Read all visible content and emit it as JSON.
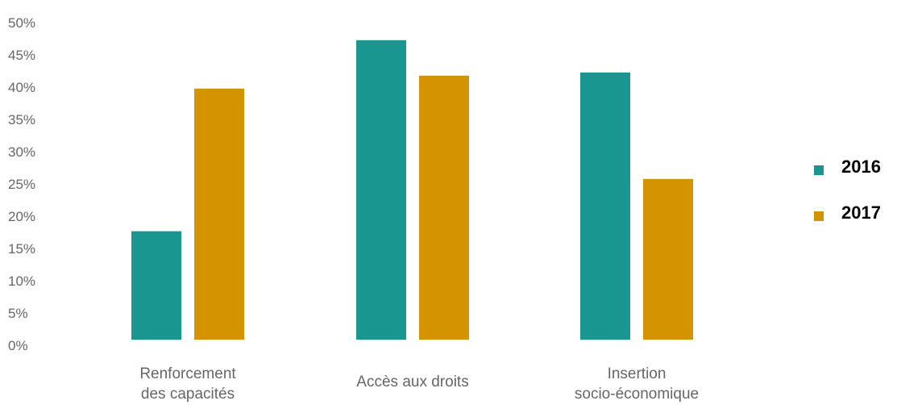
{
  "chart_data": {
    "type": "bar",
    "categories": [
      [
        "Renforcement",
        "des capacités"
      ],
      [
        "Accès aux droits"
      ],
      [
        "Insertion",
        "socio-économique"
      ]
    ],
    "series": [
      {
        "name": "2016",
        "values": [
          16.8,
          46.4,
          41.4
        ],
        "color": "#1a9690"
      },
      {
        "name": "2017",
        "values": [
          38.9,
          40.9,
          24.9
        ],
        "color": "#d49300"
      }
    ],
    "ylim": [
      0,
      50
    ],
    "yticks": [
      "0%",
      "5%",
      "10%",
      "15%",
      "20%",
      "25%",
      "30%",
      "35%",
      "40%",
      "45%",
      "50%"
    ],
    "grid": false,
    "legend_position": "right"
  }
}
